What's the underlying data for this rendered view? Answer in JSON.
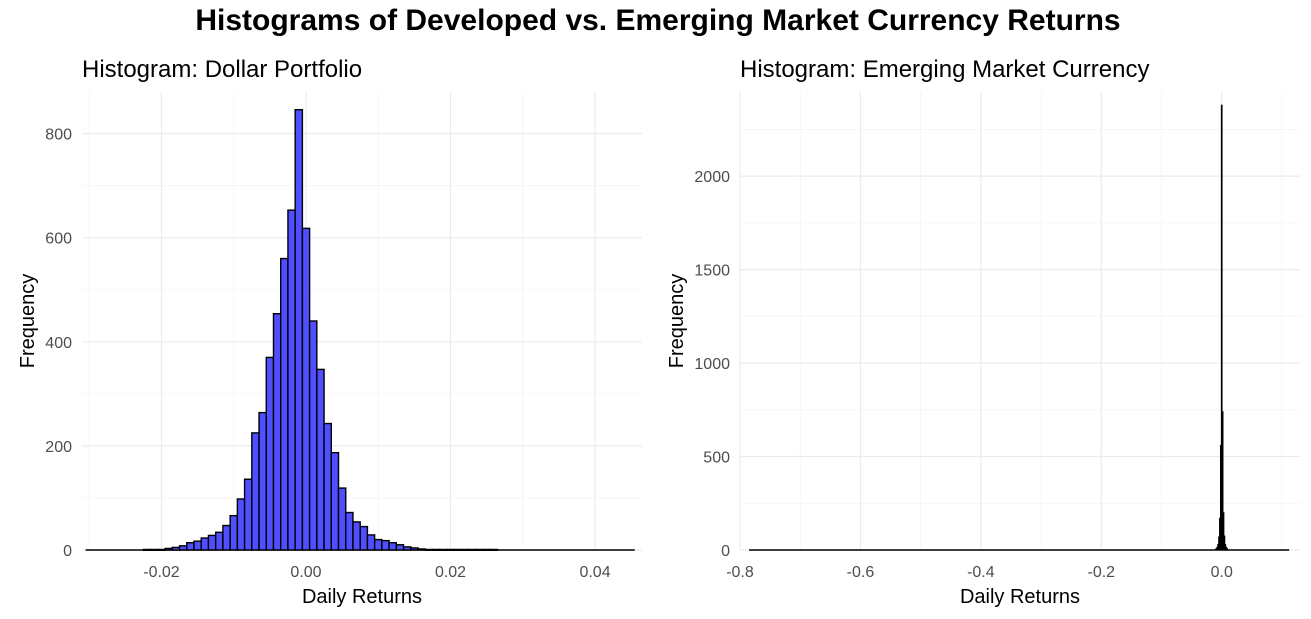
{
  "title": "Histograms of Developed vs. Emerging Market Currency Returns",
  "chart_data": [
    {
      "type": "bar",
      "title": "Histogram: Dollar Portfolio",
      "xlabel": "Daily Returns",
      "ylabel": "Frequency",
      "xlim": [
        -0.031,
        0.0465
      ],
      "ylim": [
        0,
        880
      ],
      "x_ticks": [
        -0.02,
        0.0,
        0.02,
        0.04
      ],
      "x_tick_labels": [
        "-0.02",
        "0.00",
        "0.02",
        "0.04"
      ],
      "y_ticks": [
        0,
        200,
        400,
        600,
        800
      ],
      "y_tick_labels": [
        "0",
        "200",
        "400",
        "600",
        "800"
      ],
      "bar_fill": "#4f4fff",
      "bar_outline": "#000000",
      "bin_width": 0.001,
      "bin_centers": [
        -0.03,
        -0.029,
        -0.028,
        -0.027,
        -0.026,
        -0.025,
        -0.024,
        -0.023,
        -0.022,
        -0.021,
        -0.02,
        -0.019,
        -0.018,
        -0.017,
        -0.016,
        -0.015,
        -0.014,
        -0.013,
        -0.012,
        -0.011,
        -0.01,
        -0.009,
        -0.008,
        -0.007,
        -0.006,
        -0.005,
        -0.004,
        -0.003,
        -0.002,
        -0.001,
        0.0,
        0.001,
        0.002,
        0.003,
        0.004,
        0.005,
        0.006,
        0.007,
        0.008,
        0.009,
        0.01,
        0.011,
        0.012,
        0.013,
        0.014,
        0.015,
        0.016,
        0.017,
        0.018,
        0.019,
        0.02,
        0.021,
        0.022,
        0.023,
        0.024,
        0.025,
        0.026,
        0.027,
        0.028,
        0.029,
        0.03,
        0.031,
        0.032,
        0.033,
        0.034,
        0.035,
        0.036,
        0.037,
        0.038,
        0.039,
        0.04,
        0.041,
        0.042,
        0.043,
        0.044,
        0.045
      ],
      "values": [
        0,
        0,
        0,
        0,
        0,
        0,
        0,
        0,
        1,
        1,
        1,
        3,
        5,
        8,
        14,
        17,
        23,
        28,
        34,
        47,
        66,
        98,
        136,
        225,
        264,
        370,
        454,
        560,
        653,
        846,
        618,
        440,
        347,
        243,
        187,
        119,
        72,
        54,
        45,
        29,
        20,
        18,
        14,
        10,
        6,
        4,
        2,
        1,
        1,
        1,
        1,
        1,
        1,
        1,
        1,
        1,
        1,
        0,
        0,
        0,
        0,
        0,
        0,
        0,
        0,
        0,
        0,
        0,
        0,
        0,
        0,
        0,
        0,
        0,
        0,
        0
      ]
    },
    {
      "type": "bar",
      "title": "Histogram: Emerging Market Currency",
      "xlabel": "Daily Returns",
      "ylabel": "Frequency",
      "xlim": [
        -0.8,
        0.13
      ],
      "ylim": [
        0,
        2450
      ],
      "x_ticks": [
        -0.8,
        -0.6,
        -0.4,
        -0.2,
        0.0
      ],
      "x_tick_labels": [
        "-0.8",
        "-0.6",
        "-0.4",
        "-0.2",
        "0.0"
      ],
      "y_ticks": [
        0,
        500,
        1000,
        1500,
        2000
      ],
      "y_tick_labels": [
        "0",
        "500",
        "1000",
        "1500",
        "2000"
      ],
      "x_range": [
        -0.785,
        0.112
      ],
      "bar_fill": "#000000",
      "bar_outline": "#000000",
      "bin_width": 0.0015,
      "bin_centers": [
        -0.009,
        -0.0075,
        -0.006,
        -0.0045,
        -0.003,
        -0.0015,
        0.0,
        0.0015,
        0.003,
        0.0045,
        0.006,
        0.0075,
        0.009
      ],
      "values": [
        8,
        15,
        30,
        70,
        170,
        560,
        2380,
        740,
        200,
        75,
        30,
        15,
        8
      ]
    }
  ]
}
